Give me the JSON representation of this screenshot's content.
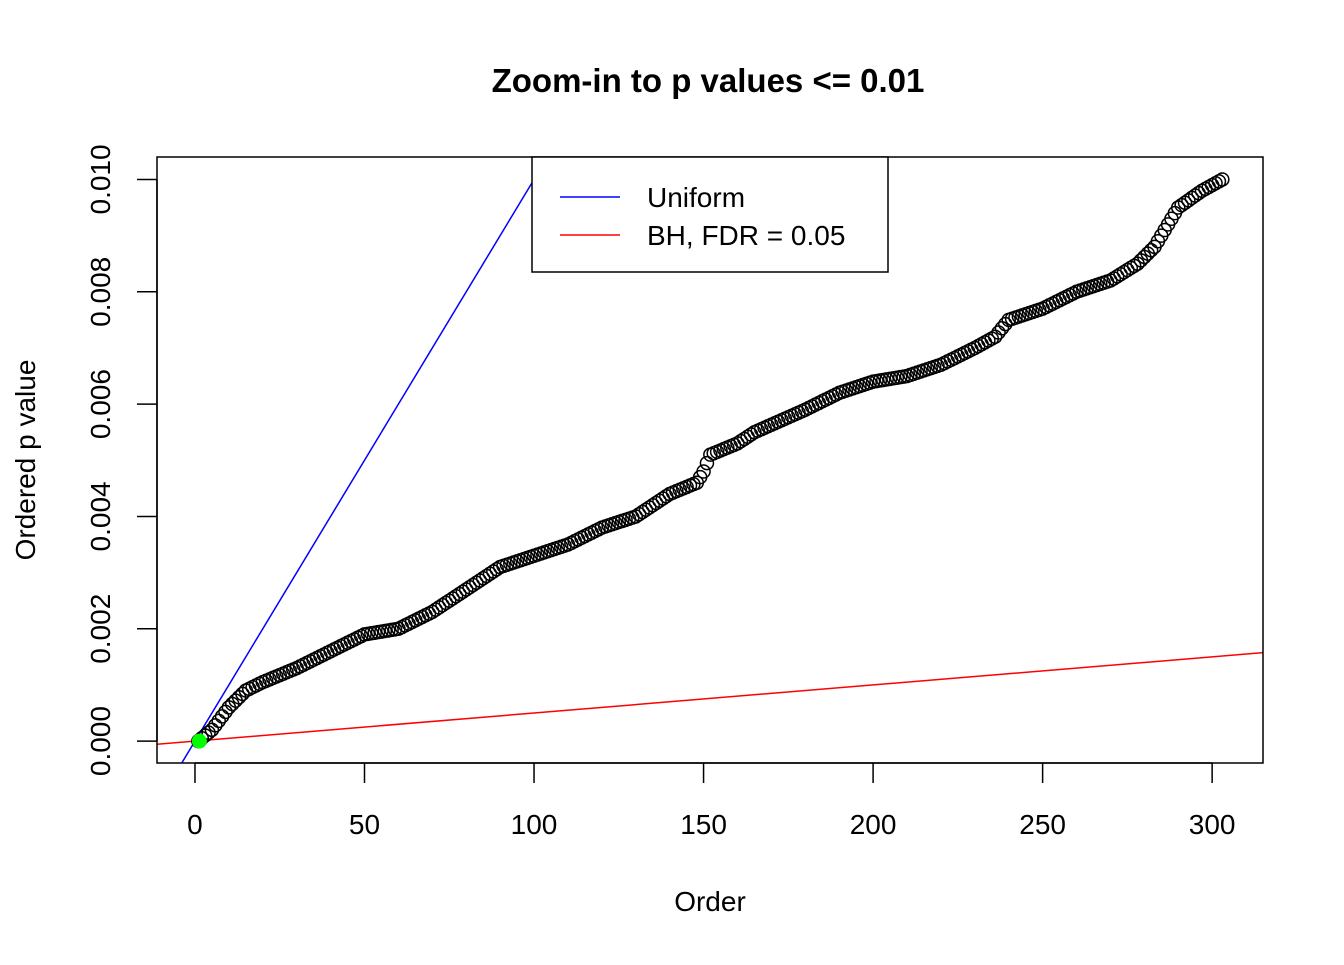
{
  "chart_data": {
    "type": "scatter",
    "title": "Zoom-in to p values <= 0.01",
    "xlabel": "Order",
    "ylabel": "Ordered p value",
    "xlim": [
      -11.2,
      315
    ],
    "ylim": [
      -0.00039,
      0.0104
    ],
    "x_ticks": [
      0,
      50,
      100,
      150,
      200,
      250,
      300
    ],
    "x_tick_labels": [
      "0",
      "50",
      "100",
      "150",
      "200",
      "250",
      "300"
    ],
    "y_ticks": [
      0,
      0.002,
      0.004,
      0.006,
      0.008,
      0.01
    ],
    "y_tick_labels": [
      "0.000",
      "0.002",
      "0.004",
      "0.006",
      "0.008",
      "0.010"
    ],
    "grid": false,
    "n_points": 303,
    "points_keypoints": [
      [
        1,
        0
      ],
      [
        5,
        0.0002
      ],
      [
        10,
        0.0006
      ],
      [
        15,
        0.0009
      ],
      [
        20,
        0.00105
      ],
      [
        30,
        0.0013
      ],
      [
        40,
        0.0016
      ],
      [
        50,
        0.0019
      ],
      [
        60,
        0.002
      ],
      [
        70,
        0.0023
      ],
      [
        80,
        0.0027
      ],
      [
        90,
        0.0031
      ],
      [
        100,
        0.0033
      ],
      [
        110,
        0.0035
      ],
      [
        120,
        0.0038
      ],
      [
        130,
        0.004
      ],
      [
        140,
        0.0044
      ],
      [
        148,
        0.0046
      ],
      [
        150,
        0.0048
      ],
      [
        152,
        0.0051
      ],
      [
        160,
        0.0053
      ],
      [
        165,
        0.0055
      ],
      [
        180,
        0.0059
      ],
      [
        190,
        0.0062
      ],
      [
        200,
        0.0064
      ],
      [
        210,
        0.0065
      ],
      [
        220,
        0.0067
      ],
      [
        230,
        0.007
      ],
      [
        236,
        0.0072
      ],
      [
        240,
        0.0075
      ],
      [
        250,
        0.0077
      ],
      [
        260,
        0.008
      ],
      [
        270,
        0.0082
      ],
      [
        278,
        0.0085
      ],
      [
        283,
        0.0088
      ],
      [
        287,
        0.0092
      ],
      [
        290,
        0.0095
      ],
      [
        297,
        0.0098
      ],
      [
        303,
        0.01
      ]
    ],
    "highlighted_points": [
      {
        "x": 1,
        "y": 0,
        "color": "#00ff00"
      }
    ],
    "lines": [
      {
        "name": "Uniform",
        "slope": 0.0001,
        "intercept": 0,
        "color": "#0000ff"
      },
      {
        "name": "BH, FDR = 0.05",
        "slope": 5e-06,
        "intercept": 0,
        "color": "#ff0000"
      }
    ],
    "legend": {
      "placement": "top-center",
      "entries": [
        "Uniform",
        "BH, FDR = 0.05"
      ]
    }
  }
}
